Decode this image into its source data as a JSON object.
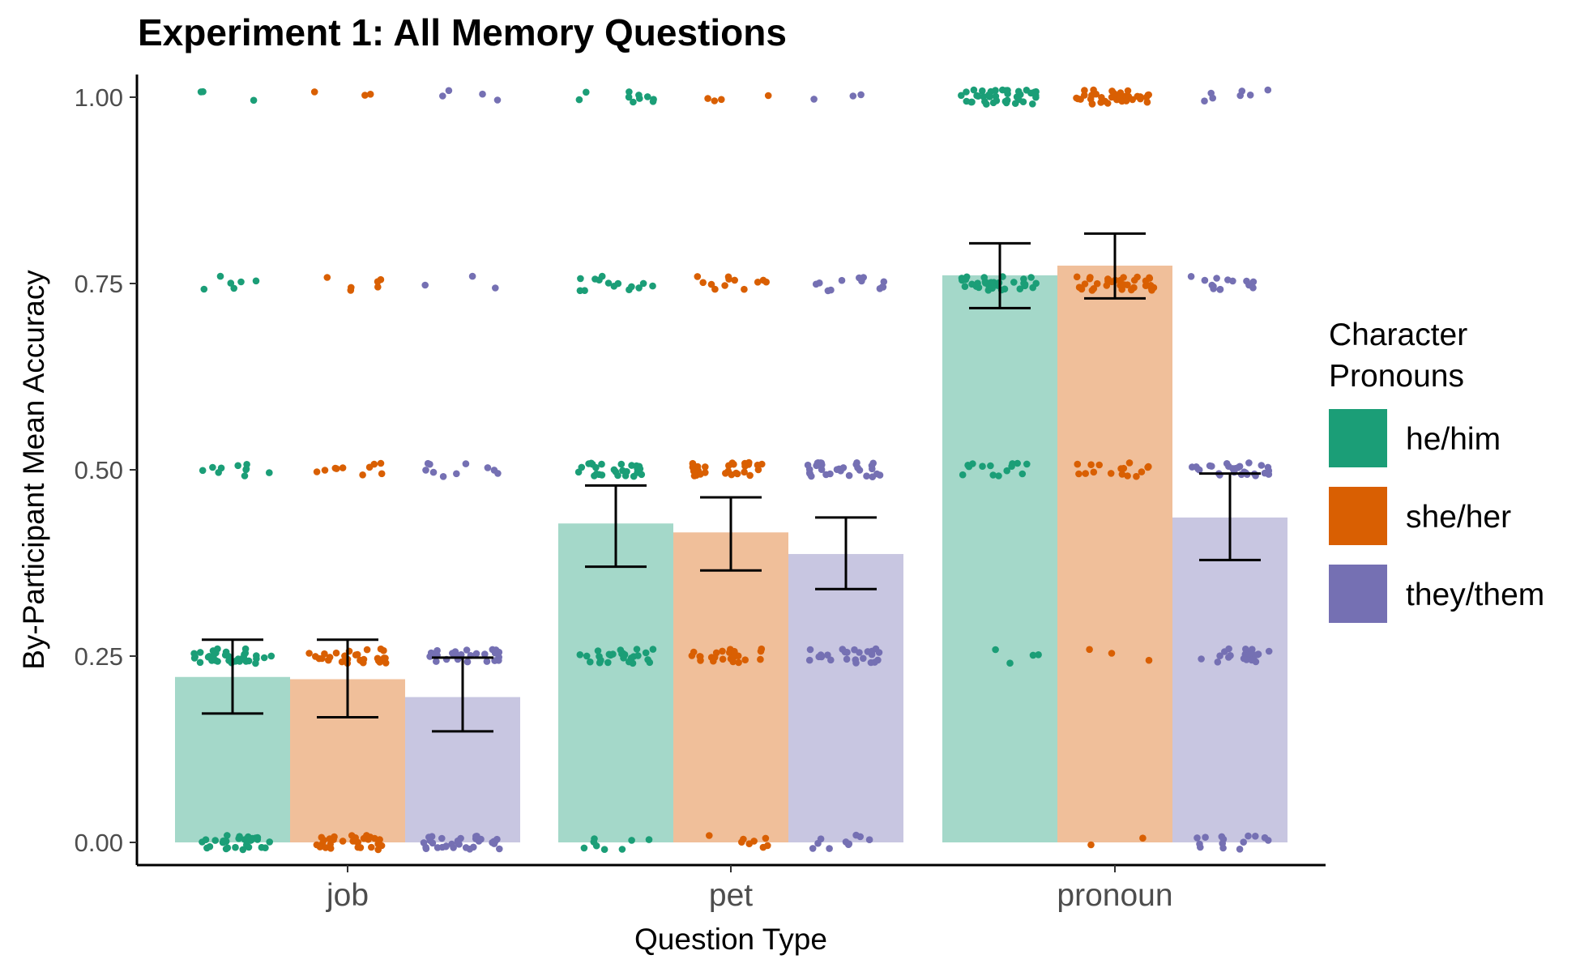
{
  "chart_data": {
    "type": "bar",
    "title": "Experiment 1: All Memory Questions",
    "xlabel": "Question Type",
    "ylabel": "By-Participant Mean Accuracy",
    "ylim": [
      0,
      1
    ],
    "yticks": [
      "0.00",
      "0.25",
      "0.50",
      "0.75",
      "1.00"
    ],
    "categories": [
      "job",
      "pet",
      "pronoun"
    ],
    "legend_title": [
      "Character",
      "Pronouns"
    ],
    "legend_position": "right",
    "grid": false,
    "series": [
      {
        "name": "he/him",
        "color": "#1b9e77",
        "values": [
          0.222,
          0.428,
          0.761
        ],
        "ci_low": [
          0.173,
          0.37,
          0.717
        ],
        "ci_high": [
          0.272,
          0.479,
          0.804
        ],
        "points": [
          {
            "y": 0.0,
            "n": 30
          },
          {
            "y": 0.25,
            "n": 34
          },
          {
            "y": 0.5,
            "n": 10
          },
          {
            "y": 0.75,
            "n": 6
          },
          {
            "y": 1.0,
            "n": 3
          },
          {
            "y": 0.0,
            "n": 8
          },
          {
            "y": 0.25,
            "n": 28
          },
          {
            "y": 0.5,
            "n": 26
          },
          {
            "y": 0.75,
            "n": 14
          },
          {
            "y": 1.0,
            "n": 10
          },
          {
            "y": 0.25,
            "n": 4
          },
          {
            "y": 0.5,
            "n": 14
          },
          {
            "y": 0.75,
            "n": 32
          },
          {
            "y": 1.0,
            "n": 40
          }
        ]
      },
      {
        "name": "she/her",
        "color": "#d95f02",
        "values": [
          0.219,
          0.416,
          0.774
        ],
        "ci_low": [
          0.168,
          0.365,
          0.73
        ],
        "ci_high": [
          0.272,
          0.463,
          0.817
        ],
        "points": [
          {
            "y": 0.0,
            "n": 30
          },
          {
            "y": 0.25,
            "n": 30
          },
          {
            "y": 0.5,
            "n": 10
          },
          {
            "y": 0.75,
            "n": 6
          },
          {
            "y": 1.0,
            "n": 3
          },
          {
            "y": 0.0,
            "n": 8
          },
          {
            "y": 0.25,
            "n": 24
          },
          {
            "y": 0.5,
            "n": 30
          },
          {
            "y": 0.75,
            "n": 12
          },
          {
            "y": 1.0,
            "n": 4
          },
          {
            "y": 0.0,
            "n": 2
          },
          {
            "y": 0.25,
            "n": 3
          },
          {
            "y": 0.5,
            "n": 16
          },
          {
            "y": 0.75,
            "n": 34
          },
          {
            "y": 1.0,
            "n": 40
          }
        ]
      },
      {
        "name": "they/them",
        "color": "#7570b3",
        "values": [
          0.195,
          0.387,
          0.436
        ],
        "ci_low": [
          0.149,
          0.34,
          0.379
        ],
        "ci_high": [
          0.248,
          0.436,
          0.495
        ],
        "points": [
          {
            "y": 0.0,
            "n": 32
          },
          {
            "y": 0.25,
            "n": 26
          },
          {
            "y": 0.5,
            "n": 10
          },
          {
            "y": 0.75,
            "n": 3
          },
          {
            "y": 1.0,
            "n": 4
          },
          {
            "y": 0.0,
            "n": 10
          },
          {
            "y": 0.25,
            "n": 24
          },
          {
            "y": 0.5,
            "n": 30
          },
          {
            "y": 0.75,
            "n": 12
          },
          {
            "y": 1.0,
            "n": 3
          },
          {
            "y": 0.0,
            "n": 14
          },
          {
            "y": 0.25,
            "n": 24
          },
          {
            "y": 0.5,
            "n": 28
          },
          {
            "y": 0.75,
            "n": 14
          },
          {
            "y": 1.0,
            "n": 7
          }
        ]
      }
    ]
  }
}
